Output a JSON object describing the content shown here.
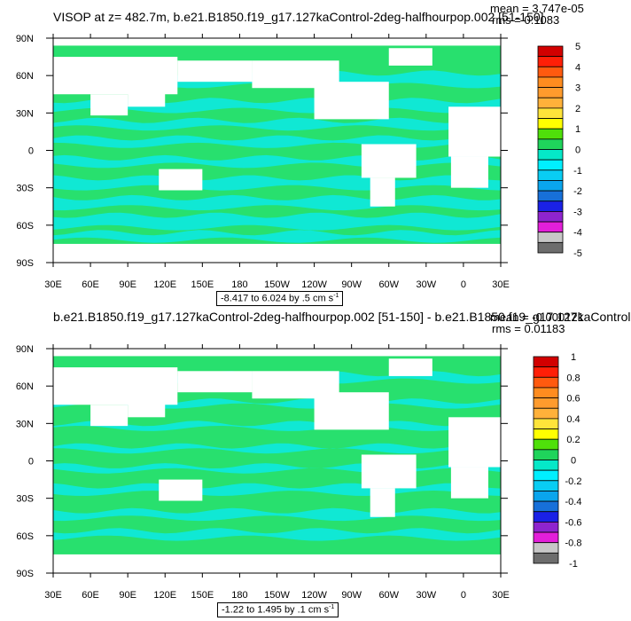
{
  "panels": [
    {
      "title": "VISOP at z= 482.7m, b.e21.B1850.f19_g17.127kaControl-2deg-halfhourpop.002 [51-150]",
      "mean": "mean = 3.747e-05",
      "rms": "rms = 0.1083",
      "range_text": "-8.417 to 6.024 by .5 cm s",
      "range_unit_exp": "-1",
      "colorbar_labels": [
        "5",
        "4",
        "3",
        "2",
        "1",
        "0",
        "-1",
        "-2",
        "-3",
        "-4",
        "-5"
      ]
    },
    {
      "title": "b.e21.B1850.f19_g17.127kaControl-2deg-halfhourpop.002 [51-150] - b.e21.B1850.f19_g17.127kaControl",
      "mean": "mean = -0.000121",
      "rms": "rms = 0.01183",
      "range_text": "-1.22 to 1.495 by .1 cm s",
      "range_unit_exp": "-1",
      "colorbar_labels": [
        "1",
        "0.8",
        "0.6",
        "0.4",
        "0.2",
        "0",
        "-0.2",
        "-0.4",
        "-0.6",
        "-0.8",
        "-1"
      ]
    }
  ],
  "axes": {
    "x_ticks": [
      "30E",
      "60E",
      "90E",
      "120E",
      "150E",
      "180",
      "150W",
      "120W",
      "90W",
      "60W",
      "30W",
      "0",
      "30E"
    ],
    "y_ticks": [
      "90N",
      "60N",
      "30N",
      "0",
      "30S",
      "60S",
      "90S"
    ]
  },
  "colors": {
    "scale": [
      "#6d6d6d",
      "#c7c7c7",
      "#e31fd9",
      "#8f24ce",
      "#1a21e6",
      "#1770d9",
      "#0aa5ed",
      "#09cdf3",
      "#00efff",
      "#05e8c8",
      "#1fd45b",
      "#4fe00a",
      "#ffff00",
      "#ffe43a",
      "#ffb13a",
      "#ff9b2d",
      "#ff8c1f",
      "#ff5a0f",
      "#ff1f07",
      "#d20000"
    ],
    "ocean_a": "#10e8d4",
    "ocean_b": "#28e06e"
  },
  "chart_data": [
    {
      "type": "heatmap",
      "title": "VISOP at z= 482.7m, b.e21.B1850.f19_g17.127kaControl-2deg-halfhourpop.002 [51-150]",
      "x_ticks": [
        "30E",
        "60E",
        "90E",
        "120E",
        "150E",
        "180",
        "150W",
        "120W",
        "90W",
        "60W",
        "30W",
        "0",
        "30E"
      ],
      "y_ticks": [
        "90N",
        "60N",
        "30N",
        "0",
        "30S",
        "60S",
        "90S"
      ],
      "contour_levels": [
        -5,
        -4.5,
        -4,
        -3.5,
        -3,
        -2.5,
        -2,
        -1.5,
        -1,
        -0.5,
        0,
        0.5,
        1,
        1.5,
        2,
        2.5,
        3,
        3.5,
        4,
        4.5,
        5
      ],
      "units": "cm s-1",
      "min": -8.417,
      "max": 6.024,
      "interval": 0.5,
      "mean": 3.747e-05,
      "rms": 0.1083
    },
    {
      "type": "heatmap",
      "title": "b.e21.B1850.f19_g17.127kaControl-2deg-halfhourpop.002 [51-150] - b.e21.B1850.f19_g17.127kaControl",
      "x_ticks": [
        "30E",
        "60E",
        "90E",
        "120E",
        "150E",
        "180",
        "150W",
        "120W",
        "90W",
        "60W",
        "30W",
        "0",
        "30E"
      ],
      "y_ticks": [
        "90N",
        "60N",
        "30N",
        "0",
        "30S",
        "60S",
        "90S"
      ],
      "contour_levels": [
        -1,
        -0.9,
        -0.8,
        -0.7,
        -0.6,
        -0.5,
        -0.4,
        -0.3,
        -0.2,
        -0.1,
        0,
        0.1,
        0.2,
        0.3,
        0.4,
        0.5,
        0.6,
        0.7,
        0.8,
        0.9,
        1
      ],
      "units": "cm s-1",
      "min": -1.22,
      "max": 1.495,
      "interval": 0.1,
      "mean": -0.000121,
      "rms": 0.01183
    }
  ]
}
